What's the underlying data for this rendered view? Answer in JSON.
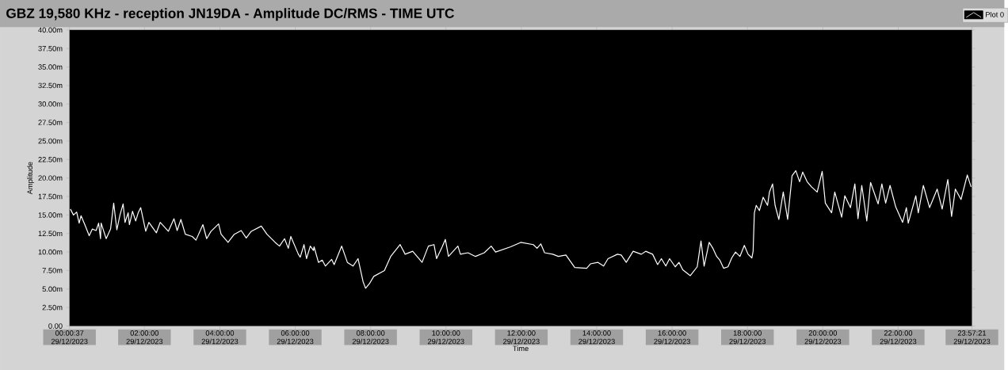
{
  "chart_data": {
    "type": "line",
    "title": "GBZ  19,580 KHz - reception JN19DA -  Amplitude DC/RMS   - TIME UTC",
    "xlabel": "Time",
    "ylabel": "Amplitude",
    "legend": "top right",
    "xlim": [
      "2023-12-29T00:00:37",
      "2023-12-29T23:57:21"
    ],
    "ylim": [
      0,
      40
    ],
    "xticks": [
      {
        "value": "2023-12-29T00:00:37",
        "label": "00:00:37 29/12/2023"
      },
      {
        "value": "2023-12-29T02:00",
        "label": "02:00:00 29/12/2023"
      },
      {
        "value": "2023-12-29T04:00",
        "label": "04:00:00 29/12/2023"
      },
      {
        "value": "2023-12-29T06:00",
        "label": "06:00:00 29/12/2023"
      },
      {
        "value": "2023-12-29T08:00",
        "label": "08:00:00 29/12/2023"
      },
      {
        "value": "2023-12-29T10:00",
        "label": "10:00:00 29/12/2023"
      },
      {
        "value": "2023-12-29T12:00",
        "label": "12:00:00 29/12/2023"
      },
      {
        "value": "2023-12-29T14:00",
        "label": "14:00:00 29/12/2023"
      },
      {
        "value": "2023-12-29T16:00",
        "label": "16:00:00 29/12/2023"
      },
      {
        "value": "2023-12-29T18:00",
        "label": "18:00:00 29/12/2023"
      },
      {
        "value": "2023-12-29T20:00",
        "label": "20:00:00 29/12/2023"
      },
      {
        "value": "2023-12-29T22:00",
        "label": "22:00:00 29/12/2023"
      },
      {
        "value": "2023-12-29T23:57:21",
        "label": "23:57:21 29/12/2023"
      }
    ],
    "yticks": [
      {
        "value": 0,
        "label": "0.00"
      },
      {
        "value": 2.5,
        "label": "2.50m"
      },
      {
        "value": 5,
        "label": "5.00m"
      },
      {
        "value": 7.5,
        "label": "7.50m"
      },
      {
        "value": 10,
        "label": "10.00m"
      },
      {
        "value": 12.5,
        "label": "12.50m"
      },
      {
        "value": 15,
        "label": "15.00m"
      },
      {
        "value": 17.5,
        "label": "17.50m"
      },
      {
        "value": 20,
        "label": "20.00m"
      },
      {
        "value": 22.5,
        "label": "22.50m"
      },
      {
        "value": 25,
        "label": "25.00m"
      },
      {
        "value": 27.5,
        "label": "27.50m"
      },
      {
        "value": 30,
        "label": "30.00m"
      },
      {
        "value": 32.5,
        "label": "32.50m"
      },
      {
        "value": 35,
        "label": "35.00m"
      },
      {
        "value": 37.5,
        "label": "37.50m"
      },
      {
        "value": 40,
        "label": "40.00m"
      }
    ],
    "series": [
      {
        "name": "Plot 0",
        "color": "#ffffff",
        "x": [
          "2023-12-29T00:02",
          "2023-12-29T00:07",
          "2023-12-29T00:12",
          "2023-12-29T00:16",
          "2023-12-29T00:19",
          "2023-12-29T00:25",
          "2023-12-29T00:32",
          "2023-12-29T00:37",
          "2023-12-29T00:43",
          "2023-12-29T00:47",
          "2023-12-29T00:50",
          "2023-12-29T00:51",
          "2023-12-29T00:59",
          "2023-12-29T01:06",
          "2023-12-29T01:11",
          "2023-12-29T01:16",
          "2023-12-29T01:21",
          "2023-12-29T01:26",
          "2023-12-29T01:29",
          "2023-12-29T01:34",
          "2023-12-29T01:36",
          "2023-12-29T01:41",
          "2023-12-29T01:46",
          "2023-12-29T01:50",
          "2023-12-29T01:54",
          "2023-12-29T02:02",
          "2023-12-29T02:07",
          "2023-12-29T02:19",
          "2023-12-29T02:25",
          "2023-12-29T02:38",
          "2023-12-29T02:47",
          "2023-12-29T02:52",
          "2023-12-29T02:58",
          "2023-12-29T03:05",
          "2023-12-29T03:16",
          "2023-12-29T03:22",
          "2023-12-29T03:33",
          "2023-12-29T03:39",
          "2023-12-29T03:46",
          "2023-12-29T03:58",
          "2023-12-29T04:02",
          "2023-12-29T04:13",
          "2023-12-29T04:23",
          "2023-12-29T04:34",
          "2023-12-29T04:42",
          "2023-12-29T04:50",
          "2023-12-29T05:06",
          "2023-12-29T05:15",
          "2023-12-29T05:28",
          "2023-12-29T05:35",
          "2023-12-29T05:43",
          "2023-12-29T05:49",
          "2023-12-29T05:53",
          "2023-12-29T06:05",
          "2023-12-29T06:08",
          "2023-12-29T06:14",
          "2023-12-29T06:18",
          "2023-12-29T06:24",
          "2023-12-29T06:29",
          "2023-12-29T06:30",
          "2023-12-29T06:37",
          "2023-12-29T06:43",
          "2023-12-29T06:48",
          "2023-12-29T06:58",
          "2023-12-29T07:02",
          "2023-12-29T07:14",
          "2023-12-29T07:23",
          "2023-12-29T07:32",
          "2023-12-29T07:40",
          "2023-12-29T07:48",
          "2023-12-29T07:52",
          "2023-12-29T07:58",
          "2023-12-29T08:05",
          "2023-12-29T08:22",
          "2023-12-29T08:32",
          "2023-12-29T08:47",
          "2023-12-29T08:55",
          "2023-12-29T09:07",
          "2023-12-29T09:22",
          "2023-12-29T09:32",
          "2023-12-29T09:41",
          "2023-12-29T09:45",
          "2023-12-29T09:54",
          "2023-12-29T09:59",
          "2023-12-29T10:04",
          "2023-12-29T10:19",
          "2023-12-29T10:23",
          "2023-12-29T10:35",
          "2023-12-29T10:47",
          "2023-12-29T11:01",
          "2023-12-29T11:12",
          "2023-12-29T11:19",
          "2023-12-29T11:43",
          "2023-12-29T11:59",
          "2023-12-29T12:19",
          "2023-12-29T12:25",
          "2023-12-29T12:31",
          "2023-12-29T12:37",
          "2023-12-29T12:50",
          "2023-12-29T12:59",
          "2023-12-29T13:11",
          "2023-12-29T13:25",
          "2023-12-29T13:44",
          "2023-12-29T13:50",
          "2023-12-29T14:02",
          "2023-12-29T14:11",
          "2023-12-29T14:18",
          "2023-12-29T14:33",
          "2023-12-29T14:39",
          "2023-12-29T14:47",
          "2023-12-29T14:58",
          "2023-12-29T15:11",
          "2023-12-29T15:18",
          "2023-12-29T15:29",
          "2023-12-29T15:37",
          "2023-12-29T15:43",
          "2023-12-29T15:50",
          "2023-12-29T15:56",
          "2023-12-29T16:05",
          "2023-12-29T16:11",
          "2023-12-29T16:17",
          "2023-12-29T16:29",
          "2023-12-29T16:40",
          "2023-12-29T16:46",
          "2023-12-29T16:51",
          "2023-12-29T16:59",
          "2023-12-29T17:05",
          "2023-12-29T17:11",
          "2023-12-29T17:16",
          "2023-12-29T17:22",
          "2023-12-29T17:29",
          "2023-12-29T17:35",
          "2023-12-29T17:41",
          "2023-12-29T17:48",
          "2023-12-29T17:55",
          "2023-12-29T18:01",
          "2023-12-29T18:07",
          "2023-12-29T18:09",
          "2023-12-29T18:11",
          "2023-12-29T18:14",
          "2023-12-29T18:19",
          "2023-12-29T18:25",
          "2023-12-29T18:32",
          "2023-12-29T18:35",
          "2023-12-29T18:40",
          "2023-12-29T18:44",
          "2023-12-29T18:50",
          "2023-12-29T18:57",
          "2023-12-29T19:04",
          "2023-12-29T19:11",
          "2023-12-29T19:17",
          "2023-12-29T19:23",
          "2023-12-29T19:28",
          "2023-12-29T19:35",
          "2023-12-29T19:42",
          "2023-12-29T19:51",
          "2023-12-29T19:59",
          "2023-12-29T20:04",
          "2023-12-29T20:14",
          "2023-12-29T20:19",
          "2023-12-29T20:30",
          "2023-12-29T20:35",
          "2023-12-29T20:44",
          "2023-12-29T20:51",
          "2023-12-29T20:56",
          "2023-12-29T21:02",
          "2023-12-29T21:10",
          "2023-12-29T21:16",
          "2023-12-29T21:28",
          "2023-12-29T21:34",
          "2023-12-29T21:40",
          "2023-12-29T21:47",
          "2023-12-29T21:56",
          "2023-12-29T22:07",
          "2023-12-29T22:13",
          "2023-12-29T22:16",
          "2023-12-29T22:28",
          "2023-12-29T22:32",
          "2023-12-29T22:40",
          "2023-12-29T22:50",
          "2023-12-29T23:02",
          "2023-12-29T23:10",
          "2023-12-29T23:19",
          "2023-12-29T23:25",
          "2023-12-29T23:31",
          "2023-12-29T23:40",
          "2023-12-29T23:50",
          "2023-12-29T23:56"
        ],
        "values": [
          15.8,
          15.0,
          15.4,
          13.9,
          14.9,
          13.7,
          12.2,
          13.1,
          12.9,
          13.9,
          11.8,
          13.9,
          11.8,
          13.1,
          16.6,
          13.0,
          15.0,
          16.5,
          14.0,
          15.3,
          13.7,
          15.5,
          14.2,
          15.3,
          16.0,
          12.8,
          14.0,
          12.6,
          14.0,
          12.8,
          14.5,
          12.9,
          14.4,
          12.4,
          12.1,
          11.6,
          13.7,
          11.8,
          12.8,
          13.8,
          12.4,
          11.3,
          12.4,
          12.9,
          11.9,
          12.8,
          13.5,
          12.4,
          11.3,
          10.8,
          11.8,
          10.5,
          12.1,
          9.7,
          9.3,
          11.0,
          9.1,
          10.8,
          10.2,
          10.7,
          8.6,
          8.9,
          8.1,
          9.0,
          8.3,
          10.8,
          8.6,
          8.1,
          9.1,
          6.0,
          5.1,
          5.7,
          6.7,
          7.5,
          9.4,
          11.0,
          9.7,
          10.1,
          8.6,
          10.8,
          11.0,
          9.1,
          10.7,
          11.7,
          9.4,
          10.8,
          9.7,
          9.9,
          9.4,
          9.9,
          10.8,
          10.0,
          10.7,
          11.3,
          11.0,
          10.5,
          11.1,
          9.9,
          9.7,
          9.4,
          9.6,
          7.9,
          7.8,
          8.4,
          8.6,
          8.1,
          9.1,
          9.7,
          9.6,
          8.6,
          10.1,
          9.7,
          10.1,
          9.7,
          8.3,
          9.1,
          8.1,
          9.1,
          8.0,
          8.6,
          7.6,
          6.8,
          8.0,
          11.5,
          8.1,
          11.3,
          10.5,
          9.4,
          8.9,
          7.8,
          8.0,
          9.2,
          10.0,
          9.4,
          10.9,
          9.7,
          9.2,
          10.1,
          15.3,
          16.3,
          15.6,
          17.4,
          16.3,
          18.1,
          19.2,
          16.3,
          14.4,
          18.1,
          14.4,
          20.3,
          21.0,
          19.5,
          20.8,
          19.5,
          18.8,
          18.1,
          20.9,
          16.6,
          15.3,
          18.1,
          14.7,
          17.6,
          16.0,
          19.2,
          14.5,
          19.0,
          14.2,
          19.4,
          16.5,
          19.2,
          16.6,
          19.0,
          16.1,
          14.0,
          16.0,
          13.9,
          17.6,
          15.3,
          19.0,
          16.0,
          18.5,
          15.8,
          19.8,
          14.8,
          18.5,
          17.1,
          20.4,
          18.8
        ]
      }
    ]
  }
}
